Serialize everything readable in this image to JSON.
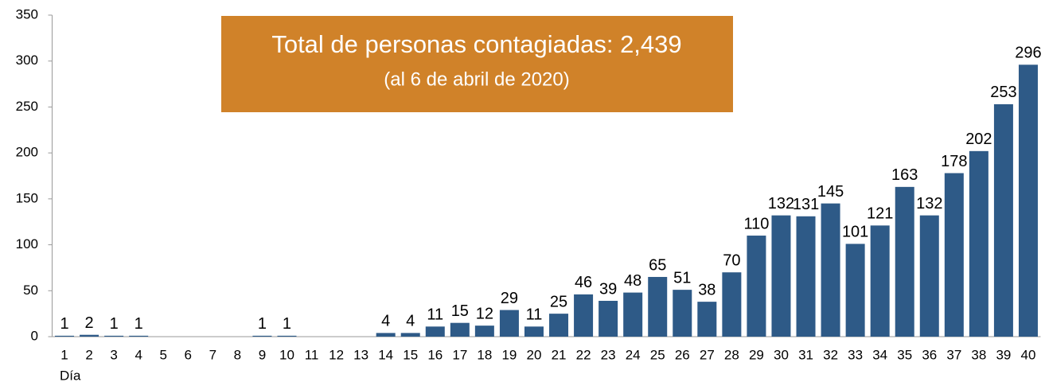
{
  "chart_data": {
    "type": "bar",
    "title": "Total de personas contagiadas: 2,439",
    "subtitle": "(al 6 de abril de 2020)",
    "x_label": "Día",
    "categories": [
      "1",
      "2",
      "3",
      "4",
      "5",
      "6",
      "7",
      "8",
      "9",
      "10",
      "11",
      "12",
      "13",
      "14",
      "15",
      "16",
      "17",
      "18",
      "19",
      "20",
      "21",
      "22",
      "23",
      "24",
      "25",
      "26",
      "27",
      "28",
      "29",
      "30",
      "31",
      "32",
      "33",
      "34",
      "35",
      "36",
      "37",
      "38",
      "39",
      "40"
    ],
    "values": [
      1,
      2,
      1,
      1,
      0,
      0,
      0,
      0,
      1,
      1,
      0,
      0,
      0,
      4,
      4,
      11,
      15,
      12,
      29,
      11,
      25,
      46,
      39,
      48,
      65,
      51,
      38,
      70,
      110,
      132,
      131,
      145,
      101,
      121,
      163,
      132,
      178,
      202,
      253,
      296
    ],
    "color": "#2e5a87",
    "annotation_color": "#d08229",
    "ylim": [
      0,
      350
    ],
    "yticks": [
      0,
      50,
      100,
      150,
      200,
      250,
      300,
      350
    ],
    "grid": false
  }
}
